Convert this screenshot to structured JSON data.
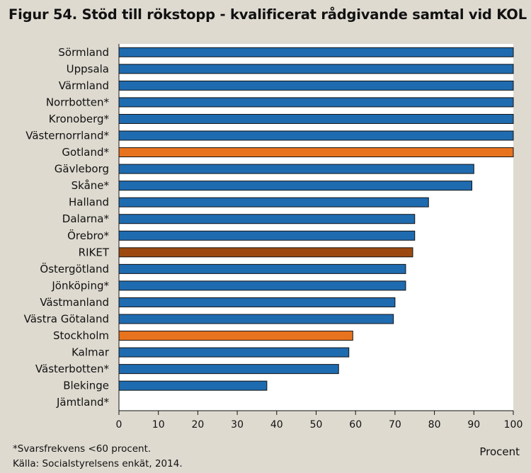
{
  "title": "Figur 54. Stöd till rökstopp - kvalificerat rådgivande samtal vid KOL",
  "footnotes": {
    "response_rate": "*Svarsfrekvens <60 procent.",
    "source": "Källa: Socialstyrelsens enkät, 2014."
  },
  "colors": {
    "default": "#1f6bb0",
    "highlight_gotland": "#e8731f",
    "highlight_stockholm": "#e8731f",
    "national": "#9c4a12",
    "background": "#dedad0",
    "plot_background": "#ffffff"
  },
  "chart_data": {
    "type": "bar",
    "orientation": "horizontal",
    "title": "Figur 54. Stöd till rökstopp - kvalificerat rådgivande samtal vid KOL",
    "xlabel": "Procent",
    "ylabel": "",
    "xlim": [
      0,
      100
    ],
    "xticks": [
      0,
      10,
      20,
      30,
      40,
      50,
      60,
      70,
      80,
      90,
      100
    ],
    "grid": false,
    "legend": "none",
    "categories": [
      "Sörmland",
      "Uppsala",
      "Värmland",
      "Norrbotten*",
      "Kronoberg*",
      "Västernorrland*",
      "Gotland*",
      "Gävleborg",
      "Skåne*",
      "Halland",
      "Dalarna*",
      "Örebro*",
      "RIKET",
      "Östergötland",
      "Jönköping*",
      "Västmanland",
      "Västra Götaland",
      "Stockholm",
      "Kalmar",
      "Västerbotten*",
      "Blekinge",
      "Jämtland*"
    ],
    "values": [
      100,
      100,
      100,
      100,
      100,
      100,
      100,
      90,
      89.5,
      78.5,
      75,
      75,
      74.5,
      72.7,
      72.7,
      70,
      69.6,
      59.3,
      58.3,
      55.7,
      37.5,
      0
    ],
    "bar_colors": [
      "default",
      "default",
      "default",
      "default",
      "default",
      "default",
      "highlight_gotland",
      "default",
      "default",
      "default",
      "default",
      "default",
      "national",
      "default",
      "default",
      "default",
      "default",
      "highlight_stockholm",
      "default",
      "default",
      "default",
      "default"
    ]
  }
}
